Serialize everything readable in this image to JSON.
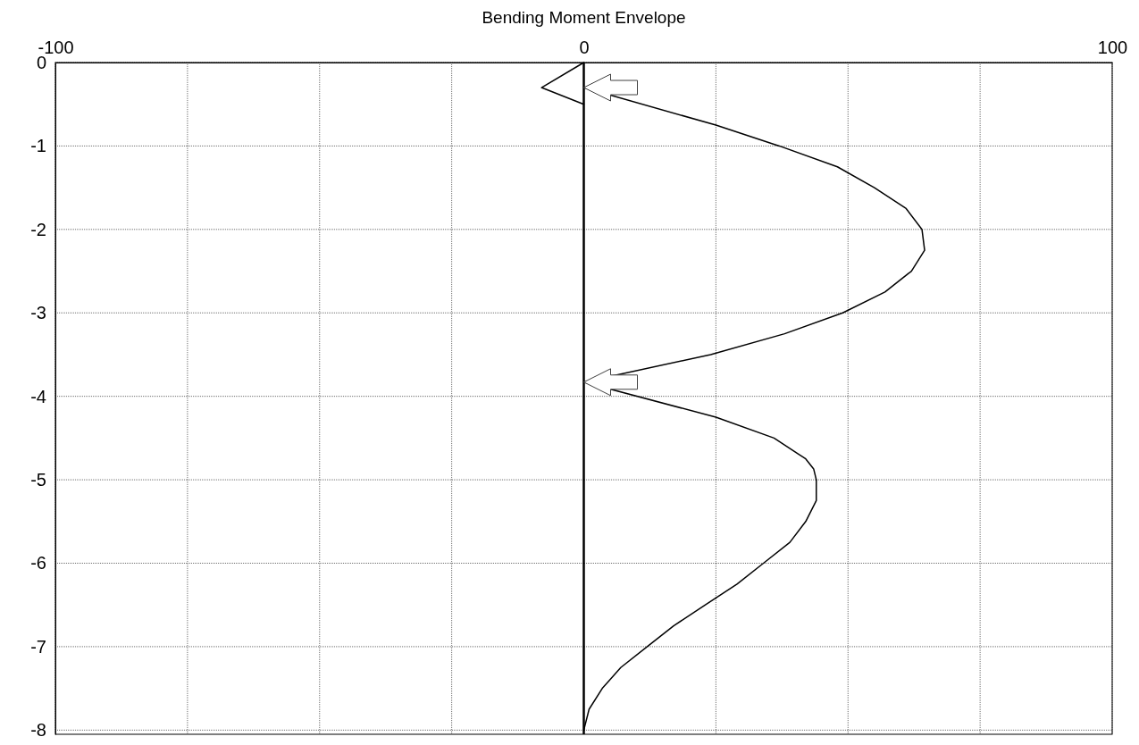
{
  "chart_data": {
    "type": "line",
    "title": "Bending Moment Envelope",
    "xlim": [
      -100,
      100
    ],
    "xticks": [
      -100,
      {
        "value": -75,
        "label": null
      },
      {
        "value": -50,
        "label": null
      },
      {
        "value": -25,
        "label": null
      },
      0,
      {
        "value": 25,
        "label": null
      },
      {
        "value": 50,
        "label": null
      },
      {
        "value": 75,
        "label": null
      },
      100
    ],
    "ylim": [
      -8.05,
      0
    ],
    "yticks": [
      0,
      -1,
      -2,
      -3,
      -4,
      -5,
      -6,
      -7,
      -8
    ],
    "grid": true,
    "ref_lines": [
      {
        "axis": "x",
        "value": 0,
        "color": "#000000"
      }
    ],
    "series": [
      {
        "color": "#000000",
        "x": [
          0,
          -8,
          0
        ],
        "values": [
          0,
          -0.3,
          -0.5
        ]
      },
      {
        "color": "#000000",
        "x": [
          0,
          25,
          37,
          48,
          55,
          61,
          64,
          64.5,
          62,
          57,
          49,
          38,
          24,
          0,
          25,
          36,
          42,
          43.5,
          44,
          44,
          42,
          39,
          34,
          29,
          23,
          17,
          12,
          7,
          3.5,
          1,
          0
        ],
        "values": [
          -0.3,
          -0.75,
          -1,
          -1.25,
          -1.5,
          -1.75,
          -2,
          -2.25,
          -2.5,
          -2.75,
          -3,
          -3.25,
          -3.5,
          -3.83,
          -4.25,
          -4.5,
          -4.75,
          -4.87,
          -5,
          -5.25,
          -5.5,
          -5.75,
          -6,
          -6.25,
          -6.5,
          -6.75,
          -7,
          -7.25,
          -7.5,
          -7.75,
          -8
        ]
      }
    ]
  }
}
